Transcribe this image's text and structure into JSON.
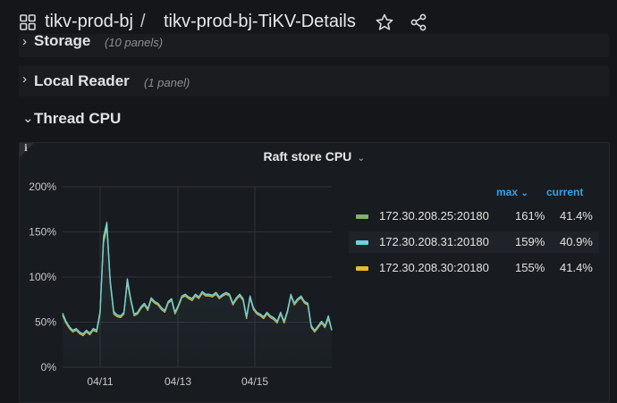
{
  "header": {
    "folder": "tikv-prod-bj",
    "separator": "/",
    "dashboard": "tikv-prod-bj-TiKV-Details"
  },
  "rows": [
    {
      "title": "Storage",
      "count": "(10 panels)",
      "collapsed": true
    },
    {
      "title": "Local Reader",
      "count": "(1 panel)",
      "collapsed": true
    },
    {
      "title": "Thread CPU",
      "count": "",
      "collapsed": false
    }
  ],
  "panel": {
    "title": "Raft store CPU",
    "info": "i",
    "legend_headers": {
      "max": "max",
      "current": "current"
    },
    "legend": [
      {
        "name": "172.30.208.25:20180",
        "max": "161%",
        "current": "41.4%",
        "color": "#7eb26d"
      },
      {
        "name": "172.30.208.31:20180",
        "max": "159%",
        "current": "40.9%",
        "color": "#6ed0e0"
      },
      {
        "name": "172.30.208.30:20180",
        "max": "155%",
        "current": "41.4%",
        "color": "#eab839"
      }
    ]
  },
  "chart_data": {
    "type": "line",
    "title": "Raft store CPU",
    "ylim": [
      0,
      200
    ],
    "y_unit": "%",
    "y_ticks": [
      "0%",
      "50%",
      "100%",
      "150%",
      "200%"
    ],
    "x_ticks": [
      "04/11",
      "04/13",
      "04/15"
    ],
    "grid": true,
    "legend_position": "right",
    "x": [
      0,
      1,
      2,
      3,
      4,
      5,
      6,
      7,
      8,
      9,
      10,
      11,
      12,
      13,
      14,
      15,
      16,
      17,
      18,
      19,
      20,
      21,
      22,
      23,
      24,
      25,
      26,
      27,
      28,
      29,
      30,
      31,
      32,
      33,
      34,
      35,
      36,
      37,
      38,
      39,
      40,
      41,
      42,
      43,
      44,
      45,
      46,
      47,
      48,
      49,
      50,
      51,
      52,
      53,
      54,
      55,
      56,
      57,
      58,
      59,
      60,
      61,
      62,
      63,
      64,
      65,
      66,
      67,
      68,
      69,
      70,
      71,
      72,
      73,
      74,
      75,
      76,
      77,
      78,
      79
    ],
    "series": [
      {
        "name": "172.30.208.25:20180",
        "color": "#7eb26d",
        "values": [
          58,
          50,
          44,
          40,
          42,
          38,
          36,
          40,
          37,
          42,
          40,
          60,
          145,
          161,
          95,
          60,
          57,
          56,
          60,
          97,
          75,
          58,
          60,
          66,
          70,
          64,
          76,
          72,
          70,
          65,
          62,
          72,
          75,
          60,
          68,
          78,
          80,
          77,
          75,
          80,
          77,
          83,
          80,
          80,
          79,
          82,
          77,
          80,
          82,
          80,
          70,
          76,
          80,
          75,
          55,
          78,
          65,
          60,
          58,
          55,
          60,
          56,
          54,
          50,
          60,
          50,
          62,
          80,
          70,
          75,
          78,
          72,
          70,
          45,
          40,
          45,
          50,
          45,
          55,
          41
        ]
      },
      {
        "name": "172.30.208.31:20180",
        "color": "#6ed0e0",
        "values": [
          60,
          51,
          45,
          41,
          43,
          39,
          37,
          41,
          38,
          43,
          41,
          62,
          140,
          159,
          96,
          62,
          58,
          57,
          61,
          98,
          76,
          59,
          61,
          67,
          71,
          65,
          77,
          73,
          71,
          66,
          63,
          73,
          76,
          61,
          69,
          79,
          81,
          78,
          76,
          81,
          78,
          84,
          81,
          81,
          80,
          83,
          78,
          81,
          83,
          81,
          71,
          77,
          81,
          76,
          56,
          79,
          66,
          61,
          59,
          56,
          61,
          57,
          55,
          51,
          61,
          51,
          63,
          81,
          71,
          76,
          79,
          73,
          71,
          46,
          41,
          46,
          51,
          46,
          57,
          41
        ]
      },
      {
        "name": "172.30.208.30:20180",
        "color": "#eab839",
        "values": [
          57,
          49,
          43,
          39,
          41,
          37,
          35,
          39,
          36,
          41,
          39,
          59,
          138,
          155,
          93,
          59,
          56,
          55,
          59,
          94,
          74,
          57,
          59,
          65,
          69,
          63,
          75,
          71,
          69,
          64,
          61,
          71,
          74,
          59,
          67,
          77,
          79,
          76,
          74,
          79,
          76,
          82,
          79,
          79,
          78,
          81,
          76,
          79,
          81,
          79,
          69,
          75,
          79,
          74,
          54,
          77,
          64,
          59,
          57,
          54,
          59,
          55,
          53,
          49,
          59,
          49,
          61,
          79,
          69,
          74,
          77,
          71,
          69,
          44,
          39,
          44,
          49,
          44,
          54,
          41
        ]
      }
    ]
  },
  "colors": {
    "background": "#141619",
    "panel": "#181b1f",
    "accent": "#33a2e5",
    "grid": "#2f3237"
  },
  "icons": {
    "apps": "apps-grid-icon",
    "star": "star-icon",
    "share": "share-icon"
  }
}
